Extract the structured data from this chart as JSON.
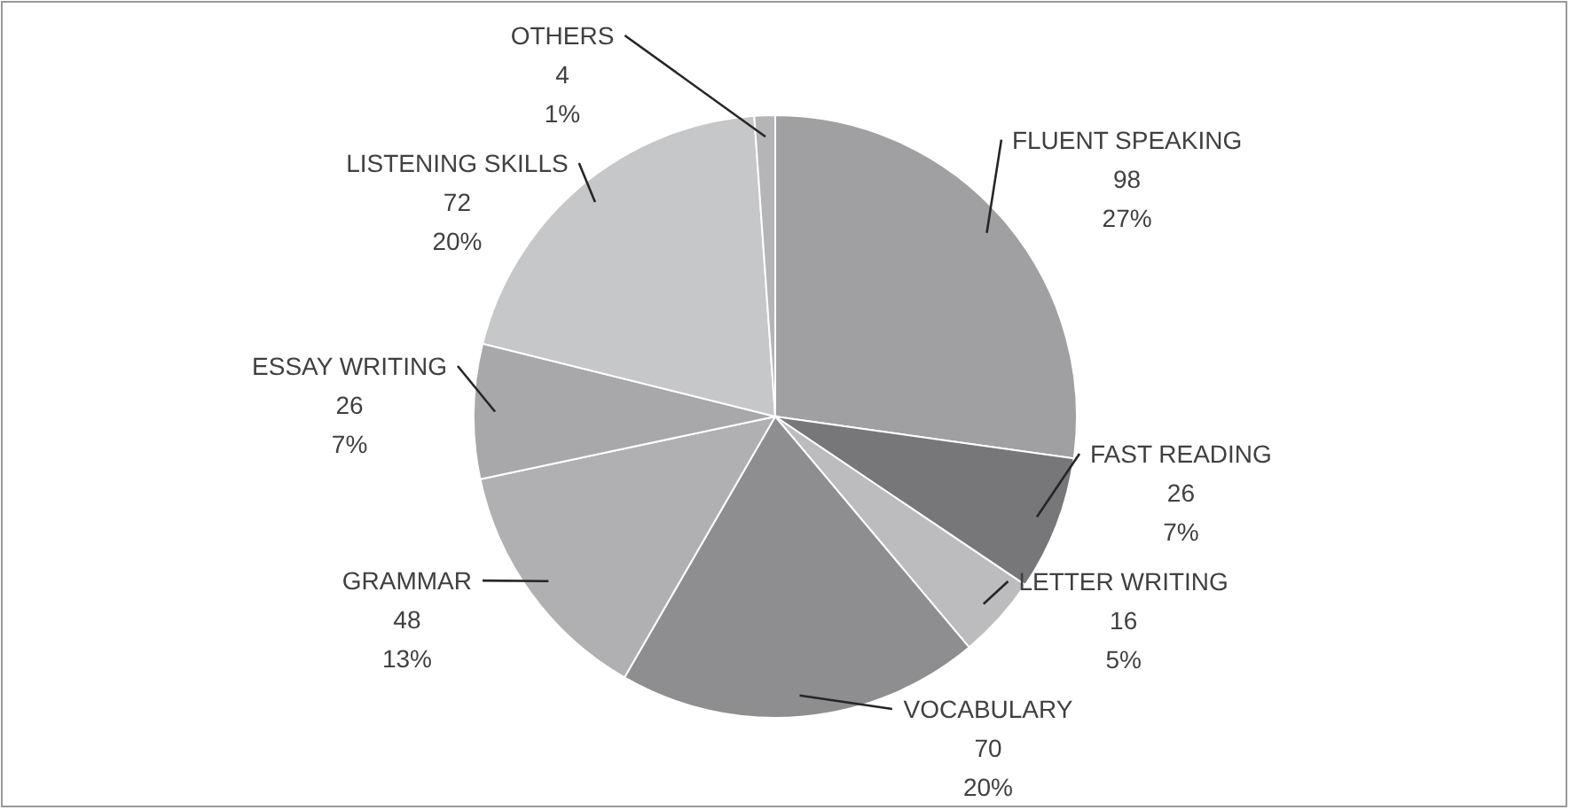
{
  "chart_data": {
    "type": "pie",
    "categories": [
      "FLUENT SPEAKING",
      "FAST READING",
      "LETTER WRITING",
      "VOCABULARY",
      "GRAMMAR",
      "ESSAY WRITING",
      "LISTENING  SKILLS",
      "OTHERS"
    ],
    "values": [
      98,
      26,
      16,
      70,
      48,
      26,
      72,
      4
    ],
    "value_labels": [
      "98\n27%",
      "26\n7%",
      "16\n5%",
      "70\n20%",
      "48\n13%",
      "26\n7%",
      "72\n20%",
      "4\n1%"
    ],
    "colors": [
      "#a0a0a3",
      "#77777a",
      "#bcbcbe",
      "#8e8e91",
      "#b0b0b3",
      "#a8a8aa",
      "#c6c7c9",
      "#b5b5b7"
    ]
  }
}
